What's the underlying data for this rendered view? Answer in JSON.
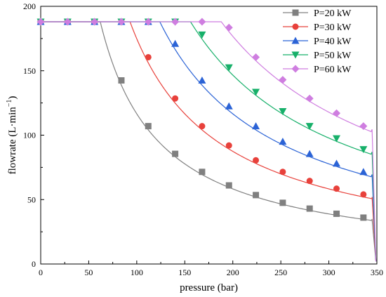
{
  "chart_data": {
    "type": "line",
    "xlabel": "pressure (bar)",
    "ylabel_main": "flowrate (L·min",
    "ylabel_sup": "−1",
    "ylabel_close": ")",
    "xlim": [
      0,
      350
    ],
    "ylim": [
      0,
      200
    ],
    "xticks": [
      0,
      50,
      100,
      150,
      200,
      250,
      300,
      350
    ],
    "yticks": [
      0,
      50,
      100,
      150,
      200
    ],
    "grid": false,
    "legend_position": "top-right",
    "series": [
      {
        "name": "P=20 kW",
        "color": "#808080",
        "marker": "square",
        "corner": 62,
        "power": 20,
        "markers": [
          [
            0,
            188
          ],
          [
            28,
            188
          ],
          [
            56,
            188
          ],
          [
            84,
            142.5
          ],
          [
            112,
            107
          ],
          [
            140,
            85.5
          ],
          [
            168,
            71.5
          ],
          [
            196,
            61
          ],
          [
            224,
            53.5
          ],
          [
            252,
            47.5
          ],
          [
            280,
            43
          ],
          [
            308,
            39
          ],
          [
            336,
            36
          ]
        ],
        "end": [
          345,
          34.5
        ]
      },
      {
        "name": "P=30 kW",
        "color": "#e8413b",
        "marker": "circle",
        "corner": 93,
        "power": 30,
        "markers": [
          [
            0,
            188
          ],
          [
            28,
            188
          ],
          [
            56,
            188
          ],
          [
            84,
            188
          ],
          [
            112,
            160.5
          ],
          [
            140,
            128.5
          ],
          [
            168,
            107
          ],
          [
            196,
            92
          ],
          [
            224,
            80.5
          ],
          [
            252,
            71.5
          ],
          [
            280,
            64.5
          ],
          [
            308,
            58.5
          ],
          [
            336,
            54
          ]
        ],
        "end": [
          345,
          52
        ]
      },
      {
        "name": "P=40 kW",
        "color": "#2b63d6",
        "marker": "triangle-up",
        "corner": 124,
        "power": 40,
        "markers": [
          [
            0,
            188
          ],
          [
            28,
            188
          ],
          [
            56,
            188
          ],
          [
            84,
            188
          ],
          [
            112,
            188
          ],
          [
            140,
            171
          ],
          [
            168,
            142.5
          ],
          [
            196,
            122.5
          ],
          [
            224,
            107
          ],
          [
            252,
            95
          ],
          [
            280,
            85.5
          ],
          [
            308,
            78
          ],
          [
            336,
            71.5
          ]
        ],
        "end": [
          345,
          69.5
        ]
      },
      {
        "name": "P=50 kW",
        "color": "#17b06a",
        "marker": "triangle-down",
        "corner": 156,
        "power": 50,
        "markers": [
          [
            0,
            188
          ],
          [
            28,
            188
          ],
          [
            56,
            188
          ],
          [
            84,
            188
          ],
          [
            112,
            188
          ],
          [
            140,
            188
          ],
          [
            168,
            178
          ],
          [
            196,
            152.5
          ],
          [
            224,
            133.5
          ],
          [
            252,
            118.5
          ],
          [
            280,
            107
          ],
          [
            308,
            97.5
          ],
          [
            336,
            89
          ]
        ],
        "end": [
          345,
          87
        ]
      },
      {
        "name": "P=60 kW",
        "color": "#cf7ee0",
        "marker": "diamond",
        "corner": 188,
        "power": 60,
        "markers": [
          [
            0,
            188
          ],
          [
            28,
            188
          ],
          [
            56,
            188
          ],
          [
            84,
            188
          ],
          [
            112,
            188
          ],
          [
            140,
            188
          ],
          [
            168,
            188
          ],
          [
            196,
            183.5
          ],
          [
            224,
            160.5
          ],
          [
            252,
            143
          ],
          [
            280,
            128.5
          ],
          [
            308,
            117
          ],
          [
            336,
            107
          ]
        ],
        "end": [
          345,
          104.5
        ]
      }
    ],
    "converge_point": [
      349,
      2
    ]
  }
}
